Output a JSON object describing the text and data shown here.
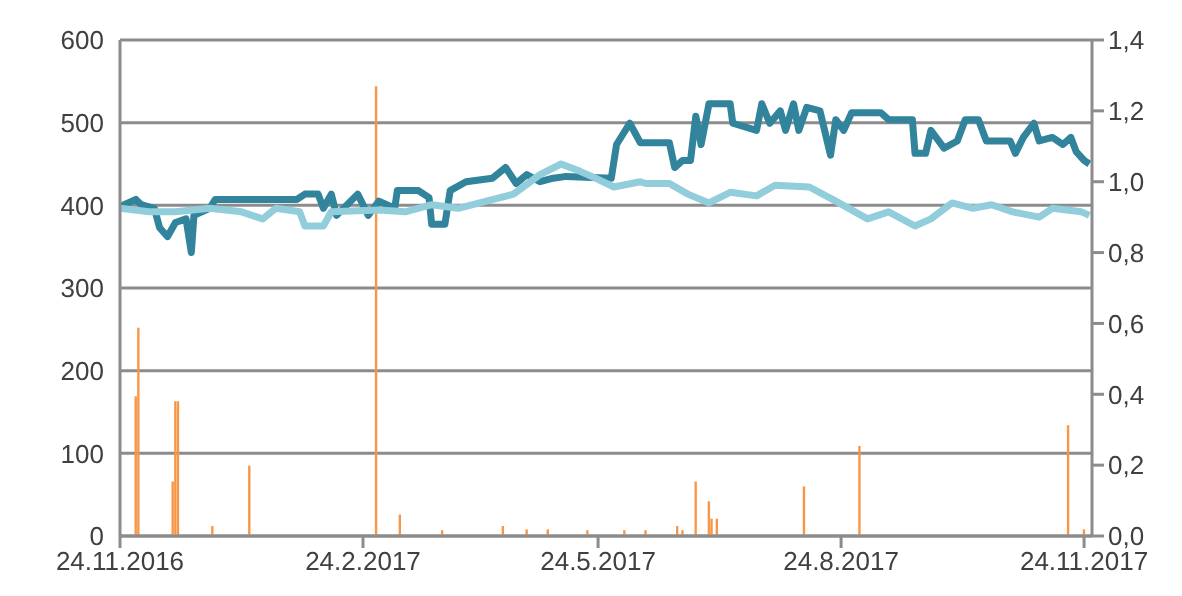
{
  "chart_data": {
    "type": "bar",
    "xlim": [
      "2016-11-24",
      "2017-11-27"
    ],
    "xticks": [
      {
        "value": "2016-11-24",
        "label": "24.11.2016"
      },
      {
        "value": "2017-02-24",
        "label": "24.2.2017"
      },
      {
        "value": "2017-05-24",
        "label": "24.5.2017"
      },
      {
        "value": "2017-08-24",
        "label": "24.8.2017"
      },
      {
        "value": "2017-11-24",
        "label": "24.11.2017"
      }
    ],
    "ylim": [
      0,
      600
    ],
    "yticks": [
      0,
      100,
      200,
      300,
      400,
      500,
      600
    ],
    "y2lim": [
      0,
      1.4
    ],
    "y2ticks": [
      {
        "value": 0,
        "label": "0,0"
      },
      {
        "value": 0.2,
        "label": "0,2"
      },
      {
        "value": 0.4,
        "label": "0,4"
      },
      {
        "value": 0.6,
        "label": "0,6"
      },
      {
        "value": 0.8,
        "label": "0,8"
      },
      {
        "value": 1,
        "label": "1,0"
      },
      {
        "value": 1.2,
        "label": "1,2"
      },
      {
        "value": 1.4,
        "label": "1,4"
      }
    ],
    "grid": "y",
    "series": [
      {
        "color": "#f79646",
        "x": [
          "2016-11-30",
          "2016-12-01",
          "2016-12-14",
          "2016-12-15",
          "2016-12-16",
          "2016-12-29",
          "2017-01-12",
          "2017-03-01",
          "2017-03-10",
          "2017-03-26",
          "2017-04-18",
          "2017-04-27",
          "2017-05-05",
          "2017-05-20",
          "2017-06-03",
          "2017-06-11",
          "2017-06-23",
          "2017-06-25",
          "2017-06-30",
          "2017-07-05",
          "2017-07-06",
          "2017-07-08",
          "2017-08-10",
          "2017-08-31",
          "2017-11-18",
          "2017-11-24"
        ],
        "values": [
          169,
          252,
          66,
          163,
          163,
          12,
          85,
          544,
          26,
          7,
          12,
          8,
          8,
          7,
          7,
          7,
          12,
          7,
          66,
          42,
          21,
          21,
          60,
          109,
          134,
          8
        ]
      },
      {
        "type": "line",
        "axis": "y2",
        "color": "#31849b",
        "x": [
          "2016-11-24",
          "2016-11-30",
          "2016-12-02",
          "2016-12-07",
          "2016-12-09",
          "2016-12-12",
          "2016-12-15",
          "2016-12-19",
          "2016-12-21",
          "2016-12-22",
          "2016-12-28",
          "2016-12-30",
          "2017-01-30",
          "2017-02-02",
          "2017-02-07",
          "2017-02-09",
          "2017-02-12",
          "2017-02-14",
          "2017-02-18",
          "2017-02-22",
          "2017-02-26",
          "2017-03-02",
          "2017-03-08",
          "2017-03-09",
          "2017-03-17",
          "2017-03-21",
          "2017-03-22",
          "2017-03-27",
          "2017-03-29",
          "2017-04-04",
          "2017-04-14",
          "2017-04-19",
          "2017-04-23",
          "2017-04-27",
          "2017-05-02",
          "2017-05-07",
          "2017-05-12",
          "2017-05-29",
          "2017-05-31",
          "2017-06-05",
          "2017-06-09",
          "2017-06-20",
          "2017-06-22",
          "2017-06-25",
          "2017-06-28",
          "2017-06-30",
          "2017-07-02",
          "2017-07-05",
          "2017-07-13",
          "2017-07-14",
          "2017-07-23",
          "2017-07-25",
          "2017-07-28",
          "2017-08-01",
          "2017-08-03",
          "2017-08-06",
          "2017-08-08",
          "2017-08-11",
          "2017-08-16",
          "2017-08-20",
          "2017-08-22",
          "2017-08-25",
          "2017-08-28",
          "2017-09-08",
          "2017-09-11",
          "2017-09-20",
          "2017-09-21",
          "2017-09-25",
          "2017-09-27",
          "2017-10-02",
          "2017-10-07",
          "2017-10-10",
          "2017-10-15",
          "2017-10-18",
          "2017-10-27",
          "2017-10-29",
          "2017-11-01",
          "2017-11-05",
          "2017-11-07",
          "2017-11-12",
          "2017-11-16",
          "2017-11-19",
          "2017-11-21",
          "2017-11-24",
          "2017-11-26"
        ],
        "values": [
          0.93,
          0.95,
          0.935,
          0.925,
          0.87,
          0.845,
          0.885,
          0.895,
          0.8,
          0.905,
          0.925,
          0.95,
          0.95,
          0.965,
          0.965,
          0.925,
          0.965,
          0.905,
          0.935,
          0.965,
          0.905,
          0.945,
          0.925,
          0.975,
          0.975,
          0.955,
          0.88,
          0.88,
          0.975,
          1.0,
          1.01,
          1.04,
          0.995,
          1.02,
          1.0,
          1.01,
          1.015,
          1.01,
          1.105,
          1.165,
          1.11,
          1.11,
          1.04,
          1.06,
          1.06,
          1.185,
          1.105,
          1.22,
          1.22,
          1.165,
          1.145,
          1.22,
          1.165,
          1.2,
          1.145,
          1.22,
          1.145,
          1.21,
          1.2,
          1.075,
          1.175,
          1.145,
          1.195,
          1.195,
          1.175,
          1.175,
          1.08,
          1.08,
          1.145,
          1.095,
          1.115,
          1.175,
          1.175,
          1.115,
          1.115,
          1.08,
          1.125,
          1.165,
          1.115,
          1.125,
          1.105,
          1.125,
          1.085,
          1.06,
          1.05
        ]
      },
      {
        "type": "line",
        "axis": "y2",
        "color": "#92cddc",
        "x": [
          "2016-11-24",
          "2016-12-05",
          "2016-12-15",
          "2016-12-28",
          "2017-01-09",
          "2017-01-17",
          "2017-01-22",
          "2017-01-31",
          "2017-02-02",
          "2017-02-09",
          "2017-02-12",
          "2017-03-02",
          "2017-03-12",
          "2017-03-22",
          "2017-04-01",
          "2017-04-22",
          "2017-05-02",
          "2017-05-10",
          "2017-05-17",
          "2017-05-23",
          "2017-05-30",
          "2017-06-09",
          "2017-06-11",
          "2017-06-20",
          "2017-06-27",
          "2017-07-05",
          "2017-07-13",
          "2017-07-23",
          "2017-07-30",
          "2017-08-12",
          "2017-08-22",
          "2017-09-03",
          "2017-09-11",
          "2017-09-21",
          "2017-09-27",
          "2017-10-05",
          "2017-10-13",
          "2017-10-20",
          "2017-10-28",
          "2017-11-07",
          "2017-11-12",
          "2017-11-23",
          "2017-11-26"
        ],
        "values": [
          0.925,
          0.915,
          0.915,
          0.925,
          0.915,
          0.895,
          0.925,
          0.915,
          0.875,
          0.875,
          0.915,
          0.92,
          0.915,
          0.935,
          0.925,
          0.965,
          1.02,
          1.05,
          1.03,
          1.01,
          0.985,
          1.0,
          0.995,
          0.995,
          0.965,
          0.94,
          0.97,
          0.96,
          0.99,
          0.985,
          0.945,
          0.895,
          0.915,
          0.875,
          0.895,
          0.94,
          0.925,
          0.935,
          0.915,
          0.9,
          0.925,
          0.915,
          0.905
        ]
      }
    ]
  }
}
